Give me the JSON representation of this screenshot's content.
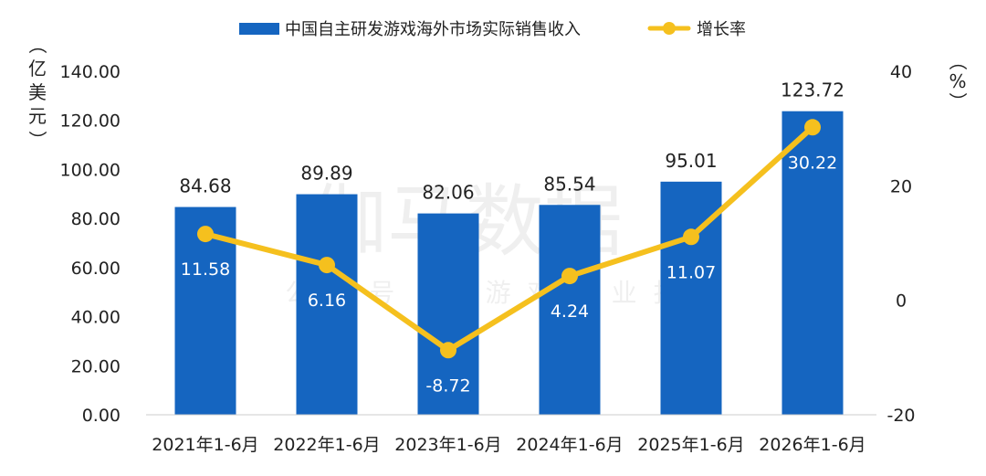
{
  "watermark": {
    "main": "伽马数据",
    "sub": "公众号 | 游戏产业报告"
  },
  "axes": {
    "left_unit": [
      "（",
      "亿",
      "美",
      "元",
      "）"
    ],
    "right_unit": [
      "（",
      "%",
      "）"
    ]
  },
  "colors": {
    "bar": "#1565C0",
    "line": "#F5C01E",
    "axis": "#cccccc"
  },
  "chart_data": {
    "type": "bar",
    "categories": [
      "2021年1-6月",
      "2022年1-6月",
      "2023年1-6月",
      "2024年1-6月",
      "2025年1-6月",
      "2026年1-6月"
    ],
    "series": [
      {
        "name": "中国自主研发游戏海外市场实际销售收入",
        "type": "bar",
        "axis": "left",
        "values": [
          84.68,
          89.89,
          82.06,
          85.54,
          95.01,
          123.72
        ],
        "labels": [
          "84.68",
          "89.89",
          "82.06",
          "85.54",
          "95.01",
          "123.72"
        ]
      },
      {
        "name": "增长率",
        "type": "line",
        "axis": "right",
        "values": [
          11.58,
          6.16,
          -8.72,
          4.24,
          11.07,
          30.22
        ],
        "labels": [
          "11.58",
          "6.16",
          "-8.72",
          "4.24",
          "11.07",
          "30.22"
        ]
      }
    ],
    "y_left": {
      "ylim": [
        0,
        140
      ],
      "ticks": [
        "0.00",
        "20.00",
        "40.00",
        "60.00",
        "80.00",
        "100.00",
        "120.00",
        "140.00"
      ],
      "tick_values": [
        0,
        20,
        40,
        60,
        80,
        100,
        120,
        140
      ]
    },
    "y_right": {
      "ylim": [
        -20,
        40
      ],
      "ticks": [
        "-20",
        "0",
        "20",
        "40"
      ],
      "tick_values": [
        -20,
        0,
        20,
        40
      ]
    },
    "legend": "top-center",
    "grid": false
  }
}
